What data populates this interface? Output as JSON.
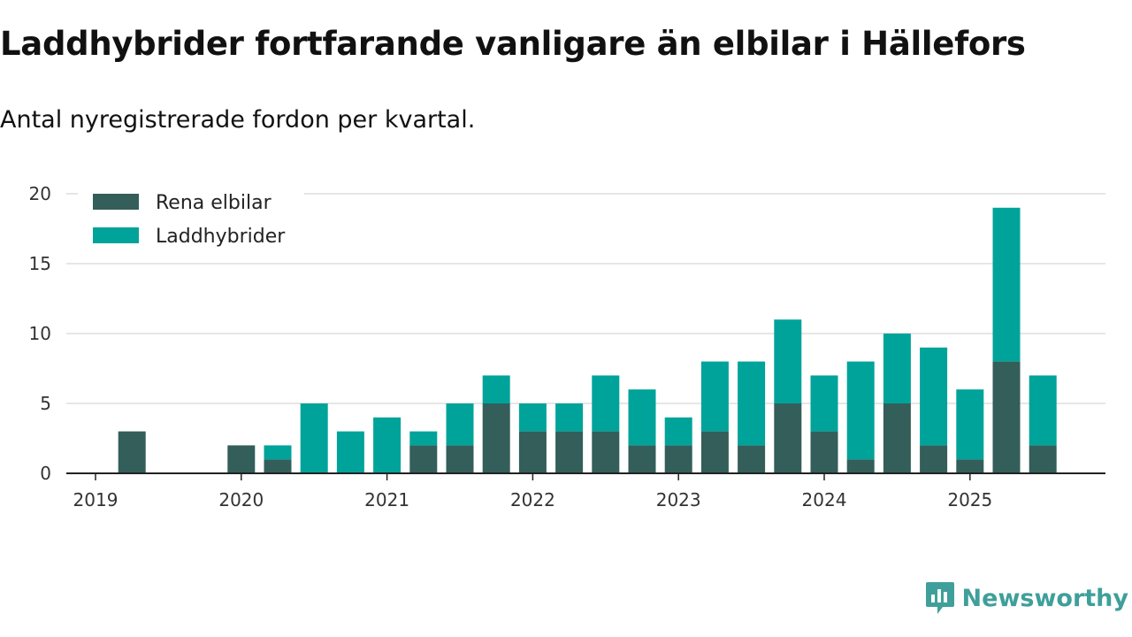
{
  "header": {
    "title": "Laddhybrider fortfarande vanligare än elbilar i Hällefors",
    "subtitle": "Antal nyregistrerade fordon per kvartal."
  },
  "brand": {
    "name": "Newsworthy",
    "icon": "newsworthy-logo-icon",
    "color": "#3f9f9a"
  },
  "chart_data": {
    "type": "bar",
    "stacked": true,
    "title": "Laddhybrider fortfarande vanligare än elbilar i Hällefors",
    "subtitle": "Antal nyregistrerade fordon per kvartal.",
    "xlabel": "",
    "ylabel": "",
    "ylim": [
      0,
      20
    ],
    "yticks": [
      0,
      5,
      10,
      15,
      20
    ],
    "xticks": [
      "2019",
      "2020",
      "2021",
      "2022",
      "2023",
      "2024",
      "2025"
    ],
    "categories": [
      "2019 Q1",
      "2019 Q2",
      "2019 Q3",
      "2019 Q4",
      "2020 Q1",
      "2020 Q2",
      "2020 Q3",
      "2020 Q4",
      "2021 Q1",
      "2021 Q2",
      "2021 Q3",
      "2021 Q4",
      "2022 Q1",
      "2022 Q2",
      "2022 Q3",
      "2022 Q4",
      "2023 Q1",
      "2023 Q2",
      "2023 Q3",
      "2023 Q4",
      "2024 Q1",
      "2024 Q2",
      "2024 Q3",
      "2024 Q4",
      "2025 Q1",
      "2025 Q2",
      "2025 Q3"
    ],
    "series": [
      {
        "name": "Rena elbilar",
        "color": "#335e5a",
        "values": [
          0,
          3,
          0,
          0,
          2,
          1,
          0,
          0,
          0,
          2,
          2,
          5,
          3,
          3,
          3,
          2,
          2,
          3,
          2,
          5,
          3,
          1,
          5,
          2,
          1,
          8,
          2
        ]
      },
      {
        "name": "Laddhybrider",
        "color": "#00a39a",
        "values": [
          0,
          0,
          0,
          0,
          0,
          1,
          5,
          3,
          4,
          1,
          3,
          2,
          2,
          2,
          4,
          4,
          2,
          5,
          6,
          6,
          4,
          7,
          5,
          7,
          5,
          11,
          5
        ]
      }
    ],
    "legend_position": "top-left",
    "grid": true
  }
}
